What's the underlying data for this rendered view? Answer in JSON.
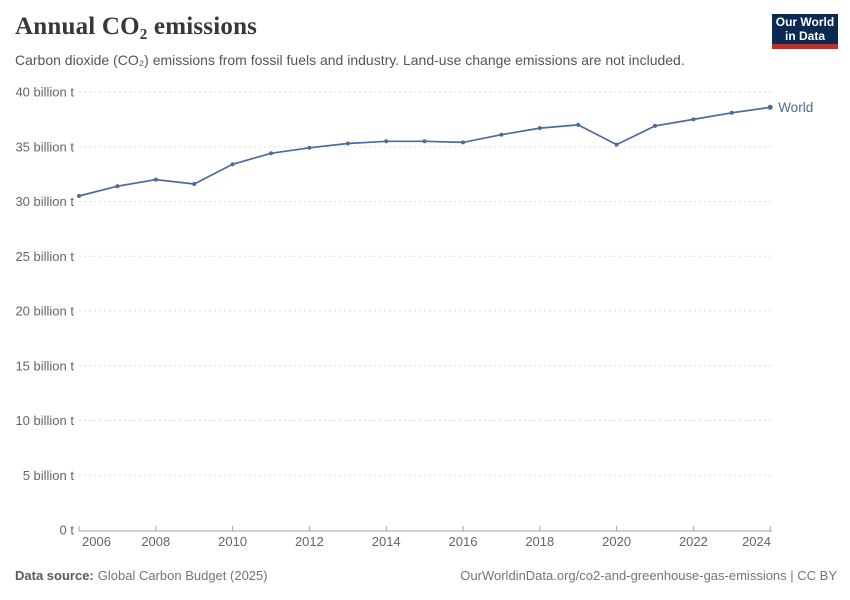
{
  "header": {
    "title": "Annual CO₂ emissions",
    "subtitle": "Carbon dioxide (CO₂) emissions from fossil fuels and industry. Land-use change emissions are not included."
  },
  "logo": {
    "line1": "Our World",
    "line2": "in Data",
    "background_color": "#0a2a52",
    "accent_color": "#b5342c"
  },
  "footer": {
    "source_label": "Data source:",
    "source_value": "Global Carbon Budget (2025)",
    "right_text": "OurWorldinData.org/co2-and-greenhouse-gas-emissions | CC BY"
  },
  "chart_data": {
    "type": "line",
    "title": "Annual CO₂ emissions",
    "subtitle": "Carbon dioxide (CO₂) emissions from fossil fuels and industry. Land-use change emissions are not included.",
    "xlabel": "",
    "ylabel": "",
    "xlim": [
      2006,
      2024
    ],
    "ylim": [
      0,
      40
    ],
    "grid": "horizontal-dashed",
    "legend": "end-of-line-label",
    "x_ticks": [
      2006,
      2008,
      2010,
      2012,
      2014,
      2016,
      2018,
      2020,
      2022,
      2024
    ],
    "y_ticks": [
      {
        "value": 0,
        "label": "0 t"
      },
      {
        "value": 5,
        "label": "5 billion t"
      },
      {
        "value": 10,
        "label": "10 billion t"
      },
      {
        "value": 15,
        "label": "15 billion t"
      },
      {
        "value": 20,
        "label": "20 billion t"
      },
      {
        "value": 25,
        "label": "25 billion t"
      },
      {
        "value": 30,
        "label": "30 billion t"
      },
      {
        "value": 35,
        "label": "35 billion t"
      },
      {
        "value": 40,
        "label": "40 billion t"
      }
    ],
    "series": [
      {
        "name": "World",
        "color": "#4C6A9C",
        "unit": "billion t",
        "x": [
          2006,
          2007,
          2008,
          2009,
          2010,
          2011,
          2012,
          2013,
          2014,
          2015,
          2016,
          2017,
          2018,
          2019,
          2020,
          2021,
          2022,
          2023,
          2024
        ],
        "values": [
          30.5,
          31.4,
          32.0,
          31.6,
          33.4,
          34.4,
          34.9,
          35.3,
          35.5,
          35.5,
          35.4,
          36.1,
          36.7,
          37.0,
          35.2,
          36.9,
          37.5,
          38.1,
          38.6
        ]
      }
    ]
  }
}
